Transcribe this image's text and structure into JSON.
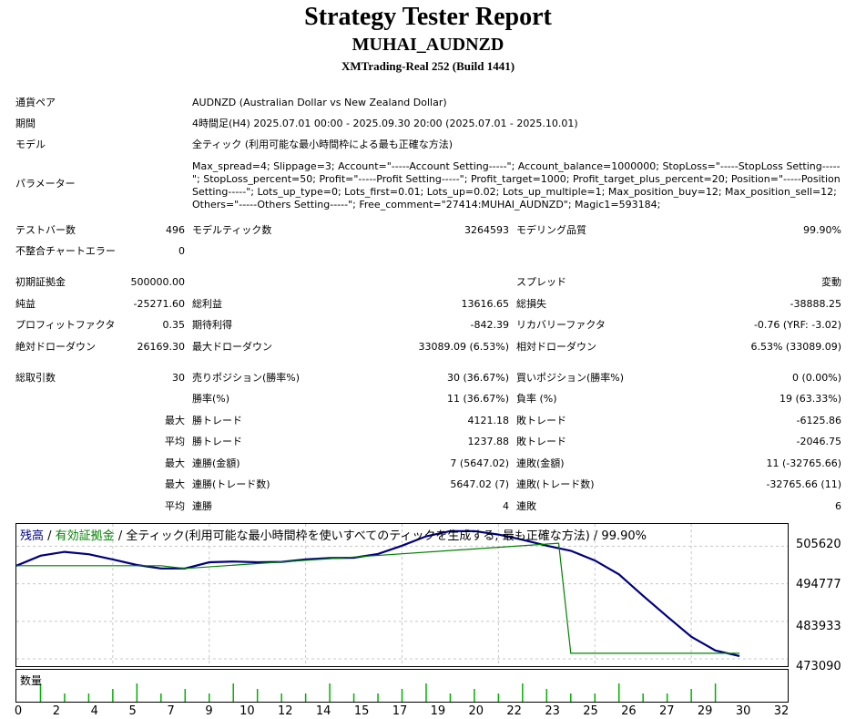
{
  "header": {
    "title": "Strategy Tester Report",
    "ea_name": "MUHAI_AUDNZD",
    "server": "XMTrading-Real 252 (Build 1441)"
  },
  "info": {
    "pair_label": "通貨ペア",
    "pair_value": "AUDNZD (Australian Dollar vs New Zealand Dollar)",
    "period_label": "期間",
    "period_value": "4時間足(H4) 2025.07.01 00:00 - 2025.09.30 20:00 (2025.07.01 - 2025.10.01)",
    "model_label": "モデル",
    "model_value": "全ティック (利用可能な最小時間枠による最も正確な方法)",
    "params_label": "パラメーター",
    "params_value": "Max_spread=4; Slippage=3; Account=\"-----Account Setting-----\"; Account_balance=1000000; StopLoss=\"-----StopLoss Setting-----\"; StopLoss_percent=50; Profit=\"-----Profit Setting-----\"; Profit_target=1000; Profit_target_plus_percent=20; Position=\"-----Position Setting-----\"; Lots_up_type=0; Lots_first=0.01; Lots_up=0.02; Lots_up_multiple=1; Max_position_buy=12; Max_position_sell=12; Others=\"-----Others Setting-----\"; Free_comment=\"27414:MUHAI_AUDNZD\"; Magic1=593184;"
  },
  "stats": {
    "bars_label": "テストバー数",
    "bars_value": "496",
    "ticks_label": "モデルティック数",
    "ticks_value": "3264593",
    "quality_label": "モデリング品質",
    "quality_value": "99.90%",
    "errors_label": "不整合チャートエラー",
    "errors_value": "0",
    "deposit_label": "初期証拠金",
    "deposit_value": "500000.00",
    "spread_label": "スプレッド",
    "spread_value": "変動",
    "net_label": "純益",
    "net_value": "-25271.60",
    "gross_profit_label": "総利益",
    "gross_profit_value": "13616.65",
    "gross_loss_label": "総損失",
    "gross_loss_value": "-38888.25",
    "pf_label": "プロフィットファクタ",
    "pf_value": "0.35",
    "expected_label": "期待利得",
    "expected_value": "-842.39",
    "recovery_label": "リカバリーファクタ",
    "recovery_value": "-0.76 (YRF: -3.02)",
    "abs_dd_label": "絶対ドローダウン",
    "abs_dd_value": "26169.30",
    "max_dd_label": "最大ドローダウン",
    "max_dd_value": "33089.09 (6.53%)",
    "rel_dd_label": "相対ドローダウン",
    "rel_dd_value": "6.53% (33089.09)",
    "trades_label": "総取引数",
    "trades_value": "30",
    "short_label": "売りポジション(勝率%)",
    "short_value": "30 (36.67%)",
    "long_label": "買いポジション(勝率%)",
    "long_value": "0 (0.00%)",
    "winrate_label": "勝率(%)",
    "winrate_value": "11 (36.67%)",
    "lossrate_label": "負率 (%)",
    "lossrate_value": "19 (63.33%)",
    "max_prefix": "最大",
    "avg_prefix": "平均",
    "max_win_label": "勝トレード",
    "max_win_value": "4121.18",
    "max_loss_label": "敗トレード",
    "max_loss_value": "-6125.86",
    "avg_win_label": "勝トレード",
    "avg_win_value": "1237.88",
    "avg_loss_label": "敗トレード",
    "avg_loss_value": "-2046.75",
    "cons_win_amt_label": "連勝(金額)",
    "cons_win_amt_value": "7 (5647.02)",
    "cons_loss_amt_label": "連敗(金額)",
    "cons_loss_amt_value": "11 (-32765.66)",
    "cons_win_cnt_label": "連勝(トレード数)",
    "cons_win_cnt_value": "5647.02 (7)",
    "cons_loss_cnt_label": "連敗(トレード数)",
    "cons_loss_cnt_value": "-32765.66 (11)",
    "avg_cons_win_label": "連勝",
    "avg_cons_win_value": "4",
    "avg_cons_loss_label": "連敗",
    "avg_cons_loss_value": "6"
  },
  "chart_data": {
    "type": "line",
    "legend": {
      "balance": "残高",
      "sep1": " / ",
      "equity": "有効証拠金",
      "sep2": " / ",
      "model": "全ティック(利用可能な最小時間枠を使いすべてのティックを生成する, 最も正確な方法)",
      "sep3": " / ",
      "quality": "99.90%"
    },
    "colors": {
      "balance": "#000080",
      "equity": "#008000",
      "volume": "#00b000",
      "grid": "#c8c8c8"
    },
    "ylim": [
      473090,
      511000
    ],
    "y_ticks": [
      "505620",
      "494777",
      "483933",
      "473090"
    ],
    "x_ticks": [
      "0",
      "2",
      "4",
      "5",
      "7",
      "9",
      "10",
      "12",
      "14",
      "15",
      "17",
      "19",
      "20",
      "22",
      "23",
      "25",
      "26",
      "27",
      "29",
      "30",
      "32"
    ],
    "series": [
      {
        "name": "残高",
        "x": [
          0,
          1,
          2,
          3,
          4,
          5,
          6,
          7,
          8,
          9,
          10,
          11,
          12,
          13,
          14,
          15,
          16,
          17,
          18,
          19,
          20,
          21,
          22,
          23,
          24,
          25,
          26,
          27,
          28,
          29,
          30
        ],
        "y": [
          500000,
          502900,
          504000,
          503300,
          501800,
          500200,
          499200,
          499200,
          501000,
          501200,
          501000,
          501100,
          501800,
          502200,
          502300,
          503400,
          505800,
          508500,
          510000,
          510000,
          509000,
          507500,
          505800,
          504300,
          501500,
          497500,
          491300,
          485300,
          479500,
          475500,
          473900
        ]
      },
      {
        "name": "有効証拠金",
        "x": [
          0,
          6,
          7,
          22.5,
          23,
          30
        ],
        "y": [
          500000,
          500000,
          499200,
          506500,
          474700,
          474700
        ]
      }
    ],
    "volume_label": "数量",
    "volume": {
      "x": [
        1,
        2,
        3,
        4,
        5,
        6,
        7,
        8,
        9,
        10,
        11,
        12,
        13,
        14,
        15,
        16,
        17,
        18,
        19,
        20,
        21,
        22,
        23,
        24,
        25,
        26,
        27,
        28,
        29
      ],
      "y": [
        1,
        1,
        1,
        1,
        1,
        1,
        1,
        1,
        1,
        1,
        1,
        1,
        1,
        1,
        1,
        1,
        1,
        1,
        1,
        1,
        1,
        1,
        1,
        1,
        1,
        1,
        1,
        1,
        1
      ]
    }
  }
}
